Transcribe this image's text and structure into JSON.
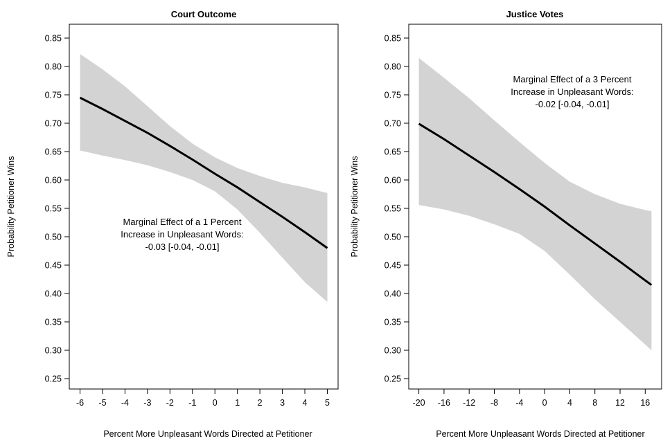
{
  "chart_data": [
    {
      "type": "line",
      "title": "Court Outcome",
      "xlabel": "Percent More Unpleasant Words Directed at Petitioner",
      "ylabel": "Probability Petitioner Wins",
      "xlim": [
        -6,
        5
      ],
      "ylim": [
        0.25,
        0.85
      ],
      "x_ticks": [
        "-6",
        "-5",
        "-4",
        "-3",
        "-2",
        "-1",
        "0",
        "1",
        "2",
        "3",
        "4",
        "5"
      ],
      "y_ticks": [
        "0.25",
        "0.30",
        "0.35",
        "0.40",
        "0.45",
        "0.50",
        "0.55",
        "0.60",
        "0.65",
        "0.70",
        "0.75",
        "0.80",
        "0.85"
      ],
      "grid": false,
      "series": [
        {
          "x": [
            -6,
            -5,
            -4,
            -3,
            -2,
            -1,
            0,
            1,
            2,
            3,
            4,
            5
          ],
          "values": [
            0.745,
            0.725,
            0.704,
            0.683,
            0.66,
            0.636,
            0.611,
            0.587,
            0.561,
            0.535,
            0.508,
            0.48
          ]
        }
      ],
      "ci_band": {
        "x": [
          -6,
          -5,
          -4,
          -3,
          -2,
          -1,
          0,
          1,
          2,
          3,
          4,
          5
        ],
        "lower": [
          0.652,
          0.643,
          0.635,
          0.626,
          0.614,
          0.6,
          0.58,
          0.548,
          0.507,
          0.463,
          0.42,
          0.385
        ],
        "upper": [
          0.822,
          0.795,
          0.765,
          0.73,
          0.695,
          0.664,
          0.64,
          0.621,
          0.607,
          0.595,
          0.587,
          0.577
        ]
      },
      "annotation": [
        "Marginal Effect of a 1 Percent",
        "Increase in Unpleasant Words:",
        "-0.03 [-0.04, -0.01]"
      ]
    },
    {
      "type": "line",
      "title": "Justice Votes",
      "xlabel": "Percent More Unpleasant Words Directed at Petitioner",
      "ylabel": "Probability Petitioner Wins",
      "xlim": [
        -20,
        17
      ],
      "ylim": [
        0.25,
        0.85
      ],
      "x_ticks": [
        "-20",
        "-16",
        "-12",
        "-8",
        "-4",
        "0",
        "4",
        "8",
        "12",
        "16"
      ],
      "y_ticks": [
        "0.25",
        "0.30",
        "0.35",
        "0.40",
        "0.45",
        "0.50",
        "0.55",
        "0.60",
        "0.65",
        "0.70",
        "0.75",
        "0.80",
        "0.85"
      ],
      "grid": false,
      "series": [
        {
          "x": [
            -20,
            -16,
            -12,
            -8,
            -4,
            0,
            4,
            8,
            12,
            16,
            17
          ],
          "values": [
            0.699,
            0.672,
            0.643,
            0.614,
            0.584,
            0.553,
            0.52,
            0.488,
            0.456,
            0.423,
            0.415
          ]
        }
      ],
      "ci_band": {
        "x": [
          -20,
          -16,
          -12,
          -8,
          -4,
          0,
          4,
          8,
          12,
          16,
          17
        ],
        "lower": [
          0.556,
          0.548,
          0.537,
          0.522,
          0.505,
          0.475,
          0.433,
          0.39,
          0.35,
          0.31,
          0.3
        ],
        "upper": [
          0.815,
          0.78,
          0.744,
          0.705,
          0.667,
          0.63,
          0.597,
          0.575,
          0.558,
          0.547,
          0.545
        ]
      },
      "annotation": [
        "Marginal Effect of a 3 Percent",
        "Increase in Unpleasant Words:",
        "-0.02 [-0.04, -0.01]"
      ]
    }
  ]
}
